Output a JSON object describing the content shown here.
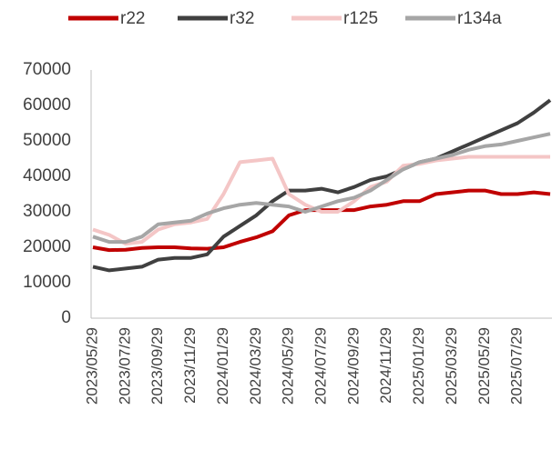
{
  "chart_data": {
    "type": "line",
    "categories": [
      "2023/05/29",
      null,
      "2023/07/29",
      null,
      "2023/09/29",
      null,
      "2023/11/29",
      null,
      "2024/01/29",
      null,
      "2024/03/29",
      null,
      "2024/05/29",
      null,
      "2024/07/29",
      null,
      "2024/09/29",
      null,
      "2024/11/29",
      null,
      "2025/01/29",
      null,
      "2025/03/29",
      null,
      "2025/05/29",
      null,
      "2025/07/29",
      null,
      null
    ],
    "series": [
      {
        "name": "r22",
        "color": "#c00000",
        "values": [
          20000,
          19200,
          19300,
          19800,
          20000,
          20000,
          19700,
          19600,
          20000,
          21500,
          22800,
          24500,
          29000,
          30500,
          30500,
          30500,
          30500,
          31500,
          32000,
          33000,
          33000,
          35000,
          35500,
          36000,
          36000,
          35000,
          35000,
          35500,
          35000
        ]
      },
      {
        "name": "r32",
        "color": "#404040",
        "values": [
          14500,
          13500,
          14000,
          14500,
          16500,
          17000,
          17000,
          18000,
          23000,
          26000,
          29000,
          33000,
          36000,
          36000,
          36500,
          35500,
          37000,
          39000,
          40000,
          42000,
          44000,
          45000,
          47000,
          49000,
          51000,
          53000,
          55000,
          58000,
          61500
        ]
      },
      {
        "name": "r125",
        "color": "#f4c6c6",
        "values": [
          25000,
          23500,
          21000,
          21500,
          25000,
          26500,
          27000,
          28000,
          35000,
          44000,
          44500,
          45000,
          35000,
          32000,
          30000,
          30000,
          33000,
          37000,
          38500,
          43000,
          43500,
          44500,
          45000,
          45500,
          45500,
          45500,
          45500,
          45500,
          45500
        ]
      },
      {
        "name": "r134a",
        "color": "#a6a6a6",
        "values": [
          23000,
          21500,
          21500,
          23000,
          26500,
          27000,
          27500,
          29500,
          31000,
          32000,
          32500,
          32000,
          31500,
          30000,
          31500,
          33000,
          34000,
          36000,
          39000,
          42000,
          44000,
          45000,
          46000,
          47500,
          48500,
          49000,
          50000,
          51000,
          52000
        ]
      }
    ],
    "ylim": [
      0,
      70000
    ],
    "yticks": [
      0,
      10000,
      20000,
      30000,
      40000,
      50000,
      60000,
      70000
    ],
    "legend": "top",
    "grid": false
  }
}
